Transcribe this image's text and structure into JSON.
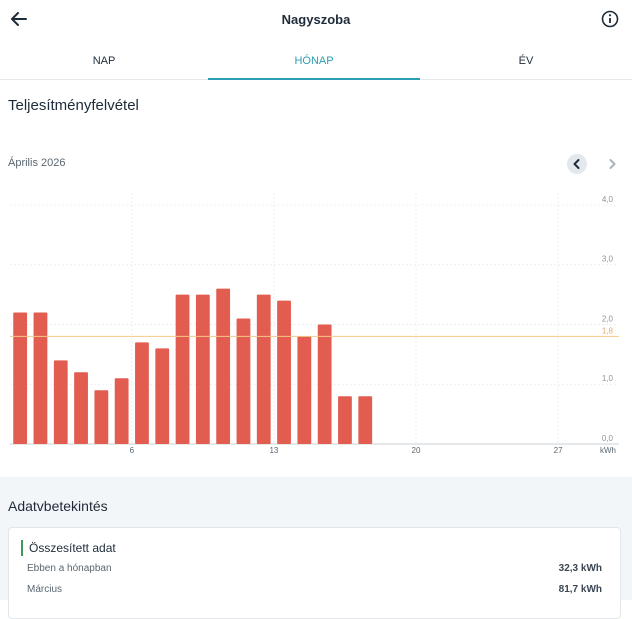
{
  "header": {
    "title": "Nagyszoba",
    "back_icon": "arrow-left-icon",
    "info_icon": "info-circle-icon"
  },
  "tabs": [
    {
      "label": "NAP",
      "active": false
    },
    {
      "label": "HÓNAP",
      "active": true
    },
    {
      "label": "ÉV",
      "active": false
    }
  ],
  "section": {
    "title": "Teljesítményfelvétel",
    "period": "Április 2026"
  },
  "colors": {
    "accent": "#2a9fb3",
    "bar": "#e25c50",
    "reference_line": "#f2c98a",
    "heading_marker": "#3a9a5a"
  },
  "chart_data": {
    "type": "bar",
    "x": [
      1,
      2,
      3,
      4,
      5,
      6,
      7,
      8,
      9,
      10,
      11,
      12,
      13,
      14,
      15,
      16,
      17,
      18
    ],
    "values": [
      2.2,
      2.2,
      1.4,
      1.2,
      0.9,
      1.1,
      1.7,
      1.6,
      2.5,
      2.5,
      2.6,
      2.1,
      2.5,
      2.4,
      1.8,
      2.0,
      0.8,
      0.8
    ],
    "x_ticks": [
      "6",
      "13",
      "20",
      "27"
    ],
    "x_tick_values": [
      6,
      13,
      20,
      27
    ],
    "x_range": [
      0,
      30
    ],
    "y_ticks": [
      "0,0",
      "1,0",
      "2,0",
      "3,0",
      "4,0"
    ],
    "y_tick_values": [
      0,
      1,
      2,
      3,
      4
    ],
    "ylim": [
      0,
      4.2
    ],
    "reference_line": {
      "value": 1.8,
      "label": "1,8"
    },
    "unit": "kWh",
    "grid": true
  },
  "insights": {
    "title": "Adatvbetekintés",
    "card_title": "Összesített adat",
    "rows": [
      {
        "label": "Ebben a hónapban",
        "value": "32,3 kWh"
      },
      {
        "label": "Március",
        "value": "81,7 kWh"
      }
    ]
  }
}
